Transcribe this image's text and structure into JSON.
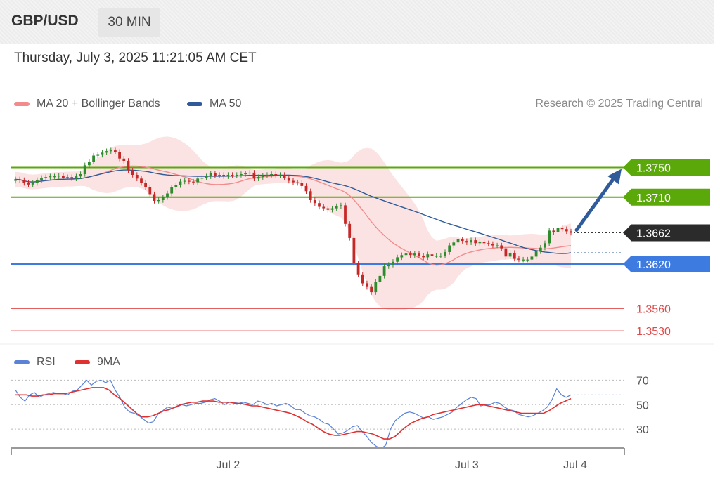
{
  "header": {
    "symbol": "GBP/USD",
    "timeframe": "30 MIN"
  },
  "timestamp": "Thursday, July 3, 2025 11:21:05 AM CET",
  "legend": {
    "ma20_label": "MA 20 + Bollinger Bands",
    "ma20_color": "#f28b8b",
    "ma50_label": "MA 50",
    "ma50_color": "#2f5b9a"
  },
  "credit": "Research © 2025 Trading Central",
  "rsi_legend": {
    "rsi_label": "RSI",
    "rsi_color": "#5b82d6",
    "ma9_label": "9MA",
    "ma9_color": "#e03030"
  },
  "colors": {
    "up": "#2e8b2e",
    "down": "#c62828",
    "resistance": "#5aa80a",
    "support": "#3d7be0",
    "target": "#e04a4a",
    "current": "#2b2b2b",
    "arrow": "#2f5b9a",
    "band": "#fbd9d9"
  },
  "chart_data": [
    {
      "type": "candlestick",
      "title": "GBP/USD 30 MIN",
      "ylim": [
        1.3515,
        1.381
      ],
      "x_tick_labels": [
        "Jul 2",
        "Jul 3",
        "Jul 4"
      ],
      "current_price": {
        "value": 1.3662,
        "label": "1.3662"
      },
      "resistance_levels": [
        {
          "value": 1.375,
          "label": "1.3750"
        },
        {
          "value": 1.371,
          "label": "1.3710"
        }
      ],
      "support_levels": [
        {
          "value": 1.362,
          "label": "1.3620"
        }
      ],
      "target_levels": [
        {
          "value": 1.356,
          "label": "1.3560"
        },
        {
          "value": 1.353,
          "label": "1.3530"
        }
      ],
      "forecast_arrow": {
        "from": 1.3662,
        "to": 1.375,
        "direction": "up"
      },
      "close": [
        1.3734,
        1.3733,
        1.3729,
        1.3727,
        1.3729,
        1.3733,
        1.3736,
        1.3737,
        1.3738,
        1.3738,
        1.3739,
        1.3736,
        1.3737,
        1.3735,
        1.3738,
        1.3741,
        1.3753,
        1.3758,
        1.3766,
        1.3767,
        1.377,
        1.3772,
        1.3773,
        1.3771,
        1.3762,
        1.3759,
        1.3746,
        1.374,
        1.3735,
        1.3729,
        1.3723,
        1.3714,
        1.3705,
        1.3706,
        1.371,
        1.3715,
        1.3723,
        1.3726,
        1.3731,
        1.3732,
        1.3731,
        1.373,
        1.3735,
        1.3736,
        1.3738,
        1.3742,
        1.3739,
        1.374,
        1.3738,
        1.374,
        1.3739,
        1.374,
        1.3741,
        1.3742,
        1.3743,
        1.3735,
        1.3737,
        1.3739,
        1.374,
        1.3741,
        1.3739,
        1.374,
        1.3736,
        1.3732,
        1.373,
        1.3729,
        1.3725,
        1.3718,
        1.3706,
        1.3702,
        1.3697,
        1.3695,
        1.3693,
        1.3695,
        1.3698,
        1.3699,
        1.3674,
        1.3655,
        1.3621,
        1.3606,
        1.3594,
        1.3589,
        1.3582,
        1.3596,
        1.3604,
        1.3617,
        1.3619,
        1.3623,
        1.3629,
        1.3632,
        1.3634,
        1.3632,
        1.3634,
        1.3631,
        1.3629,
        1.3633,
        1.3631,
        1.3631,
        1.3631,
        1.3636,
        1.3645,
        1.3649,
        1.3653,
        1.3651,
        1.3649,
        1.3652,
        1.3648,
        1.365,
        1.3648,
        1.3647,
        1.3645,
        1.3645,
        1.3641,
        1.363,
        1.3635,
        1.3627,
        1.3626,
        1.3626,
        1.3626,
        1.363,
        1.3637,
        1.3642,
        1.3648,
        1.3665,
        1.3663,
        1.3669,
        1.3667,
        1.3664,
        1.3662
      ]
    },
    {
      "type": "line",
      "title": "RSI",
      "ylim": [
        10,
        80
      ],
      "y_tick_labels": [
        "70",
        "50",
        "30"
      ],
      "series": [
        {
          "name": "RSI",
          "values": [
            62,
            56,
            53,
            58,
            60,
            56,
            58,
            59,
            60,
            59,
            59,
            58,
            61,
            62,
            66,
            70,
            66,
            69,
            70,
            68,
            70,
            62,
            56,
            48,
            44,
            43,
            41,
            38,
            35,
            36,
            42,
            45,
            48,
            47,
            48,
            50,
            49,
            50,
            51,
            51,
            52,
            54,
            55,
            53,
            50,
            52,
            52,
            51,
            52,
            51,
            50,
            53,
            52,
            50,
            51,
            49,
            50,
            51,
            49,
            46,
            46,
            43,
            41,
            40,
            38,
            35,
            34,
            30,
            26,
            27,
            29,
            32,
            33,
            28,
            24,
            19,
            16,
            14,
            17,
            30,
            37,
            40,
            43,
            44,
            43,
            41,
            39,
            40,
            38,
            39,
            40,
            42,
            44,
            48,
            51,
            54,
            56,
            55,
            49,
            50,
            50,
            52,
            51,
            48,
            46,
            45,
            42,
            41,
            40,
            41,
            43,
            45,
            48,
            54,
            63,
            58,
            56,
            58
          ]
        },
        {
          "name": "9MA",
          "values": [
            58,
            58,
            58,
            57,
            57,
            58,
            58,
            59,
            59,
            59,
            60,
            61,
            62,
            63,
            64,
            64,
            64,
            62,
            58,
            55,
            51,
            47,
            43,
            40,
            40,
            41,
            43,
            45,
            46,
            48,
            50,
            51,
            52,
            52,
            53,
            53,
            53,
            52,
            52,
            52,
            51,
            51,
            50,
            49,
            49,
            48,
            47,
            46,
            45,
            44,
            43,
            41,
            39,
            36,
            34,
            31,
            28,
            26,
            25,
            25,
            26,
            27,
            28,
            28,
            27,
            26,
            24,
            22,
            22,
            24,
            28,
            32,
            35,
            37,
            39,
            40,
            42,
            43,
            44,
            45,
            46,
            47,
            48,
            49,
            50,
            50,
            49,
            48,
            47,
            46,
            45,
            44,
            43,
            43,
            43,
            43,
            43,
            45,
            48,
            51,
            53,
            55
          ]
        }
      ]
    }
  ]
}
